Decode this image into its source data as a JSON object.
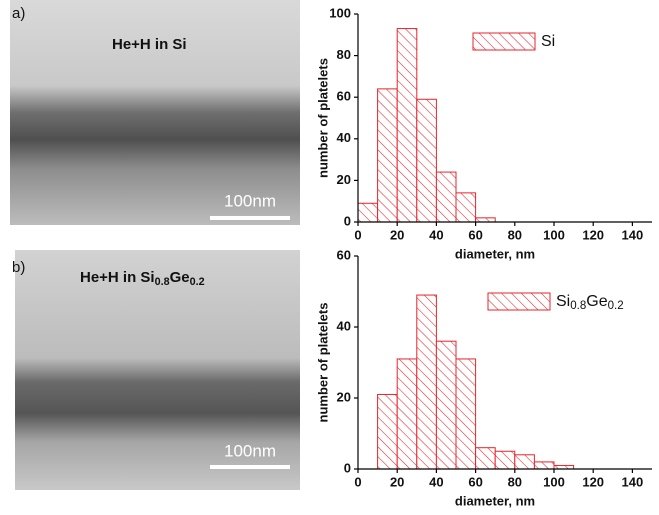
{
  "panels": [
    {
      "label": "a)",
      "caption": "He+H in Si",
      "scale_bar": "100nm"
    },
    {
      "label": "b)",
      "caption": "He+H in Si0.8Ge0.2",
      "scale_bar": "100nm"
    }
  ],
  "chart_data": [
    {
      "type": "histogram",
      "xlabel": "diameter, nm",
      "ylabel": "number of platelets",
      "bins": [
        0,
        10,
        20,
        30,
        40,
        50,
        60,
        70
      ],
      "series": [
        {
          "name": "Si",
          "color": "#e8232a",
          "values": [
            9,
            64,
            93,
            59,
            24,
            14,
            2
          ]
        }
      ],
      "xlim": [
        0,
        150
      ],
      "xticks": [
        0,
        20,
        40,
        60,
        80,
        100,
        120,
        140
      ],
      "ylim": [
        0,
        100
      ],
      "yticks": [
        0,
        20,
        40,
        60,
        80,
        100
      ]
    },
    {
      "type": "histogram",
      "xlabel": "diameter, nm",
      "ylabel": "number of platelets",
      "bins": [
        10,
        20,
        30,
        40,
        50,
        60,
        70,
        80,
        90,
        100,
        110
      ],
      "series": [
        {
          "name": "Si0.8Ge0.2",
          "color": "#e8232a",
          "values": [
            21,
            31,
            49,
            36,
            31,
            6,
            5,
            4,
            2,
            1
          ]
        }
      ],
      "xlim": [
        0,
        150
      ],
      "xticks": [
        0,
        20,
        40,
        60,
        80,
        100,
        120,
        140
      ],
      "ylim": [
        0,
        60
      ],
      "yticks": [
        0,
        20,
        40,
        60
      ]
    }
  ]
}
